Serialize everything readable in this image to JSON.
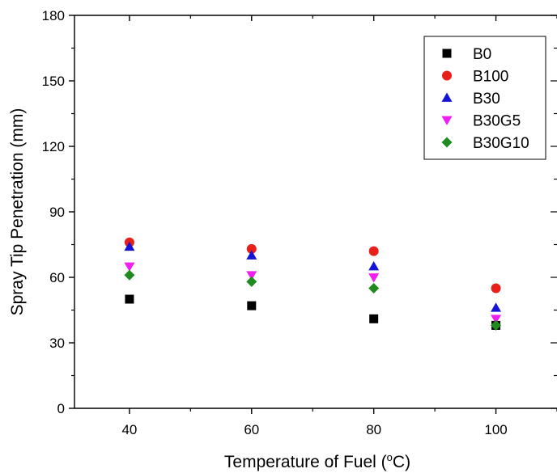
{
  "chart_data": {
    "type": "scatter",
    "xlabel": "Temperature of Fuel (",
    "xlabel_sup": "o",
    "xlabel_tail": "C)",
    "ylabel": "Spray Tip Penetration (mm)",
    "x": [
      40,
      60,
      80,
      100
    ],
    "x_ticks": [
      "40",
      "60",
      "80",
      "100"
    ],
    "y_ticks": [
      "0",
      "30",
      "60",
      "90",
      "120",
      "150",
      "180"
    ],
    "xlim": [
      31,
      110
    ],
    "ylim": [
      0,
      180
    ],
    "grid": false,
    "legend_position": "top-right",
    "series": [
      {
        "name": "B0",
        "marker": "square",
        "color": "#000000",
        "values": [
          50,
          47,
          41,
          38
        ]
      },
      {
        "name": "B100",
        "marker": "circle",
        "color": "#e8201a",
        "values": [
          76,
          73,
          72,
          55
        ]
      },
      {
        "name": "B30",
        "marker": "triangle-up",
        "color": "#1414d6",
        "values": [
          74,
          70,
          65,
          46
        ]
      },
      {
        "name": "B30G5",
        "marker": "triangle-down",
        "color": "#f01ef0",
        "values": [
          65,
          61,
          60,
          41
        ]
      },
      {
        "name": "B30G10",
        "marker": "diamond",
        "color": "#208a20",
        "values": [
          61,
          58,
          55,
          38
        ]
      }
    ]
  }
}
